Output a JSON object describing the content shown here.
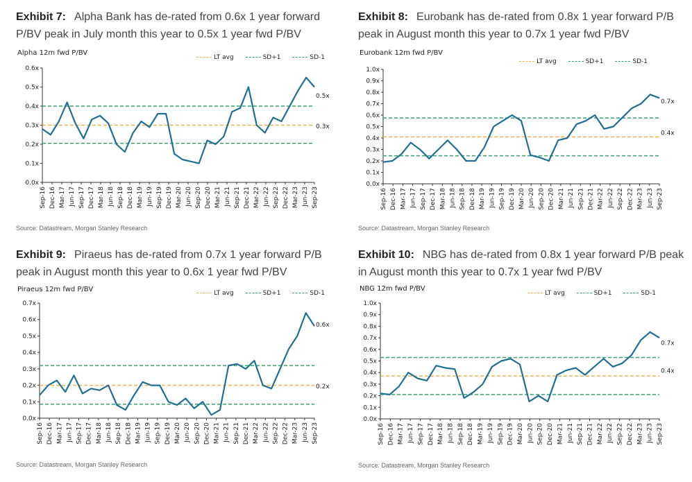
{
  "colors": {
    "line": "#1f6e93",
    "lt_avg": "#f0b14d",
    "sd": "#34a36b",
    "axis": "#333333"
  },
  "x_ticks": [
    "Sep-16",
    "Dec-16",
    "Mar-17",
    "Jun-17",
    "Sep-17",
    "Dec-17",
    "Mar-18",
    "Jun-18",
    "Sep-18",
    "Dec-18",
    "Mar-19",
    "Jun-19",
    "Sep-19",
    "Dec-19",
    "Mar-20",
    "Jun-20",
    "Sep-20",
    "Dec-20",
    "Mar-21",
    "Jun-21",
    "Sep-21",
    "Dec-21",
    "Mar-22",
    "Jun-22",
    "Sep-22",
    "Dec-22",
    "Mar-23",
    "Jun-23",
    "Sep-23"
  ],
  "legend": {
    "lt_avg": "LT avg",
    "sd_plus": "SD+1",
    "sd_minus": "SD-1"
  },
  "exhibits": [
    {
      "number": "Exhibit 7:",
      "heading": "Alpha Bank has de-rated from 0.6x 1 year forward P/BV peak in July month this year to 0.5x 1 year fwd P/BV",
      "source": "Source: Datastream, Morgan Stanley Research",
      "chart_data": {
        "type": "line",
        "title": "Alpha 12m fwd P/BV",
        "y_ticks": [
          "0.0x",
          "0.1x",
          "0.2x",
          "0.3x",
          "0.4x",
          "0.5x",
          "0.6x"
        ],
        "ylim": [
          0,
          0.6
        ],
        "series": [
          {
            "name": "Alpha 12m fwd P/BV",
            "values": [
              0.28,
              0.25,
              0.32,
              0.42,
              0.31,
              0.23,
              0.33,
              0.35,
              0.31,
              0.2,
              0.16,
              0.26,
              0.32,
              0.29,
              0.36,
              0.36,
              0.15,
              0.12,
              0.11,
              0.1,
              0.22,
              0.2,
              0.24,
              0.37,
              0.39,
              0.5,
              0.3,
              0.26,
              0.34,
              0.32,
              0.4,
              0.48,
              0.55,
              0.5
            ]
          }
        ],
        "lt_avg": 0.3,
        "sd_plus": 0.4,
        "sd_minus": 0.205,
        "annotations": [
          {
            "label": "0.5x",
            "y": 0.455
          },
          {
            "label": "0.3x",
            "y": 0.295
          }
        ]
      }
    },
    {
      "number": "Exhibit 8:",
      "heading": "Eurobank has de-rated from 0.8x 1 year forward P/B peak in August month this year to 0.7x 1 year fwd P/BV",
      "source": "Source: Datastream, Morgan Stanley Research",
      "chart_data": {
        "type": "line",
        "title": "Eurobank 12m fwd P/BV",
        "y_ticks": [
          "0.0x",
          "0.1x",
          "0.2x",
          "0.3x",
          "0.4x",
          "0.5x",
          "0.6x",
          "0.7x",
          "0.8x",
          "0.9x",
          "1.0x"
        ],
        "ylim": [
          0,
          1.0
        ],
        "series": [
          {
            "name": "Eurobank 12m fwd P/BV",
            "values": [
              0.19,
              0.2,
              0.26,
              0.36,
              0.3,
              0.22,
              0.3,
              0.38,
              0.3,
              0.2,
              0.2,
              0.32,
              0.5,
              0.55,
              0.6,
              0.55,
              0.25,
              0.23,
              0.2,
              0.38,
              0.4,
              0.52,
              0.55,
              0.6,
              0.48,
              0.5,
              0.58,
              0.66,
              0.7,
              0.78,
              0.75
            ]
          }
        ],
        "lt_avg": 0.41,
        "sd_plus": 0.575,
        "sd_minus": 0.245,
        "annotations": [
          {
            "label": "0.7x",
            "y": 0.72
          },
          {
            "label": "0.4x",
            "y": 0.445
          }
        ]
      }
    },
    {
      "number": "Exhibit 9:",
      "heading": "Piraeus has de-rated from 0.7x 1 year forward P/B peak in August month this year to 0.6x 1 year fwd P/BV",
      "source": "Source: Datastream, Morgan Stanley Research",
      "chart_data": {
        "type": "line",
        "title": "Piraeus 12m fwd P/BV",
        "y_ticks": [
          "0.0x",
          "0.1x",
          "0.2x",
          "0.3x",
          "0.4x",
          "0.5x",
          "0.6x",
          "0.7x"
        ],
        "ylim": [
          0,
          0.7
        ],
        "series": [
          {
            "name": "Piraeus 12m fwd P/BV",
            "values": [
              0.14,
              0.2,
              0.23,
              0.16,
              0.26,
              0.15,
              0.18,
              0.17,
              0.2,
              0.08,
              0.05,
              0.14,
              0.22,
              0.2,
              0.2,
              0.1,
              0.08,
              0.12,
              0.06,
              0.1,
              0.02,
              0.05,
              0.32,
              0.33,
              0.3,
              0.35,
              0.2,
              0.18,
              0.3,
              0.42,
              0.5,
              0.64,
              0.56
            ]
          }
        ],
        "lt_avg": 0.2,
        "sd_plus": 0.32,
        "sd_minus": 0.085,
        "annotations": [
          {
            "label": "0.6x",
            "y": 0.57
          },
          {
            "label": "0.2x",
            "y": 0.195
          }
        ]
      }
    },
    {
      "number": "Exhibit 10:",
      "heading": "NBG has de-rated from 0.8x 1 year forward P/B peak in August month this year to 0.7x 1 year fwd P/BV",
      "source": "Source: Datastream, Morgan Stanley Research",
      "chart_data": {
        "type": "line",
        "title": "NBG 12m fwd P/BV",
        "y_ticks": [
          "0.0x",
          "0.1x",
          "0.2x",
          "0.3x",
          "0.4x",
          "0.5x",
          "0.6x",
          "0.7x",
          "0.8x",
          "0.9x",
          "1.0x"
        ],
        "ylim": [
          0,
          1.0
        ],
        "series": [
          {
            "name": "NBG 12m fwd P/BV",
            "values": [
              0.22,
              0.21,
              0.28,
              0.4,
              0.35,
              0.33,
              0.46,
              0.44,
              0.43,
              0.18,
              0.23,
              0.3,
              0.45,
              0.5,
              0.52,
              0.47,
              0.15,
              0.2,
              0.15,
              0.38,
              0.42,
              0.44,
              0.38,
              0.45,
              0.52,
              0.45,
              0.48,
              0.55,
              0.68,
              0.75,
              0.7
            ]
          }
        ],
        "lt_avg": 0.37,
        "sd_plus": 0.53,
        "sd_minus": 0.21,
        "annotations": [
          {
            "label": "0.7x",
            "y": 0.655
          },
          {
            "label": "0.4x",
            "y": 0.415
          }
        ]
      }
    }
  ]
}
